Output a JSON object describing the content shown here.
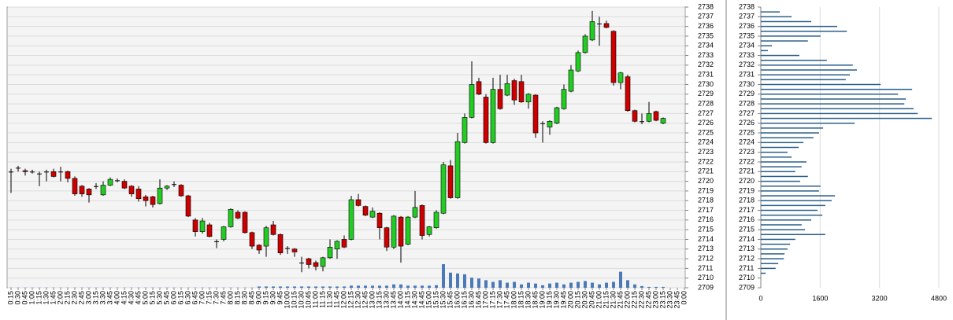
{
  "chart_data": [
    {
      "type": "candlestick",
      "categories": [
        "0:15",
        "0:30",
        "0:45",
        "1:00",
        "1:15",
        "1:30",
        "1:45",
        "2:00",
        "2:15",
        "2:30",
        "2:45",
        "3:00",
        "3:15",
        "3:30",
        "3:45",
        "4:00",
        "4:15",
        "4:30",
        "4:45",
        "5:00",
        "5:15",
        "5:30",
        "5:45",
        "6:00",
        "6:15",
        "6:30",
        "6:45",
        "7:00",
        "7:15",
        "7:30",
        "7:45",
        "8:00",
        "8:15",
        "8:30",
        "8:45",
        "9:00",
        "9:15",
        "9:30",
        "9:45",
        "10:00",
        "10:15",
        "10:30",
        "10:45",
        "11:00",
        "11:15",
        "11:30",
        "11:45",
        "12:00",
        "12:15",
        "12:30",
        "12:45",
        "13:00",
        "13:15",
        "13:30",
        "13:45",
        "14:00",
        "14:15",
        "14:30",
        "14:45",
        "15:00",
        "15:15",
        "15:30",
        "15:45",
        "16:00",
        "16:15",
        "16:30",
        "16:45",
        "17:00",
        "17:15",
        "17:30",
        "17:45",
        "18:00",
        "18:15",
        "18:30",
        "18:45",
        "19:00",
        "19:15",
        "19:30",
        "19:45",
        "20:00",
        "20:15",
        "20:30",
        "20:45",
        "21:00",
        "21:15",
        "21:30",
        "21:45",
        "22:00",
        "22:15",
        "22:30",
        "22:45",
        "23:00",
        "23:15",
        "23:30",
        "23:45",
        "0:00"
      ],
      "open": [
        2721,
        2721.4,
        2721.1,
        2721,
        2720.8,
        2721,
        2721,
        2721,
        2721,
        2720.3,
        2719.5,
        2719.2,
        2719.5,
        2718.6,
        2719.6,
        2720.1,
        2720,
        2719.5,
        2719.2,
        2718.4,
        2718.4,
        2717.7,
        2719.3,
        2719.7,
        2719.6,
        2718.5,
        2716,
        2714.8,
        2715.5,
        2713.8,
        2714,
        2715.3,
        2716.8,
        2716.8,
        2714.7,
        2713.4,
        2713.3,
        2715.5,
        2714.5,
        2713.1,
        2713,
        2711.6,
        2712,
        2711.6,
        2711.2,
        2712.1,
        2713,
        2714,
        2714,
        2718.1,
        2717.4,
        2716.3,
        2716.7,
        2715.2,
        2713.2,
        2716.3,
        2713.5,
        2716.3,
        2717.5,
        2714.5,
        2715.2,
        2716.7,
        2721.6,
        2718.3,
        2724,
        2726.6,
        2730.3,
        2728.7,
        2724,
        2729.5,
        2728.9,
        2730.4,
        2730.3,
        2728.2,
        2728.9,
        2726,
        2725.6,
        2726,
        2727.5,
        2729.3,
        2731.4,
        2733.3,
        2734.6,
        2736.3,
        2736.3,
        2735.5,
        2730.2,
        2730.8,
        2727.3,
        2726.2,
        2726.2,
        2727.2,
        2726,
        null,
        null,
        null
      ],
      "high": [
        2721.3,
        2721.6,
        2721.3,
        2721.2,
        2721,
        2721.2,
        2721.3,
        2721.5,
        2721.1,
        2720.5,
        2719.6,
        2719.3,
        2719.8,
        2720,
        2720.4,
        2720.3,
        2720.2,
        2719.6,
        2719.5,
        2718.6,
        2718.5,
        2720.2,
        2719.6,
        2720,
        2719.7,
        2718.6,
        2716.2,
        2716.2,
        2715.7,
        2714,
        2715.4,
        2717.2,
        2717,
        2716.9,
        2714.8,
        2713.5,
        2715.4,
        2715.9,
        2714.6,
        2713.3,
        2713.1,
        2712.2,
        2712.1,
        2711.8,
        2712.2,
        2714,
        2713.9,
        2714.4,
        2718.5,
        2718.7,
        2717.5,
        2717.3,
        2716.8,
        2715.3,
        2716.5,
        2716.4,
        2716.4,
        2719,
        2717.6,
        2715.4,
        2717,
        2722,
        2722.2,
        2725,
        2727,
        2732.4,
        2730.7,
        2729,
        2730.7,
        2731,
        2731,
        2730.6,
        2731,
        2729.1,
        2729,
        2726.2,
        2726.3,
        2727.7,
        2730,
        2732,
        2733.5,
        2735.2,
        2737.6,
        2737,
        2736.6,
        2735.6,
        2731.3,
        2731,
        2727.4,
        2727,
        2728.2,
        2727.3,
        2726.6,
        null,
        null,
        null
      ],
      "low": [
        2718.8,
        2721,
        2720.6,
        2720.8,
        2719.5,
        2720,
        2720.4,
        2720,
        2719.9,
        2718.5,
        2718.4,
        2717.8,
        2719.2,
        2718.5,
        2719.5,
        2719.9,
        2719.2,
        2718.4,
        2717.9,
        2717.4,
        2717.3,
        2717.6,
        2719.1,
        2719.4,
        2718.4,
        2716.3,
        2714.3,
        2714.6,
        2714.2,
        2713.1,
        2713.8,
        2715.2,
        2716.1,
        2714.6,
        2713,
        2712.5,
        2712.2,
        2714.4,
        2712.4,
        2712.5,
        2712.2,
        2710.6,
        2711,
        2710.8,
        2710.7,
        2712,
        2712,
        2713.1,
        2713.9,
        2717.4,
        2716.4,
        2716.2,
        2714,
        2712.8,
        2713,
        2711.6,
        2713.4,
        2716.2,
        2714,
        2714.3,
        2715.1,
        2716.6,
        2718.2,
        2718.2,
        2723.9,
        2726.5,
        2728.9,
        2723.9,
        2723.9,
        2727.4,
        2728.8,
        2727.9,
        2728.1,
        2727.5,
        2724.5,
        2724,
        2724.8,
        2725.9,
        2727.4,
        2729.2,
        2731.3,
        2733.2,
        2734.5,
        2734,
        2735.8,
        2729.9,
        2729.5,
        2727.2,
        2726.1,
        2725.9,
        2726.1,
        2726.2,
        2725.9,
        null,
        null,
        null
      ],
      "close": [
        2721,
        2721.4,
        2721,
        2721,
        2720.8,
        2721,
        2720.5,
        2721,
        2720.3,
        2718.7,
        2718.7,
        2718.6,
        2719.5,
        2719.6,
        2720.2,
        2720.1,
        2719.3,
        2718.7,
        2718.2,
        2718,
        2717.6,
        2719.3,
        2719.5,
        2719.7,
        2718.5,
        2716.4,
        2714.8,
        2715.9,
        2714.3,
        2713.8,
        2715.3,
        2717.1,
        2716.2,
        2714.7,
        2713.3,
        2712.9,
        2715.2,
        2714.5,
        2712.6,
        2713.1,
        2712.7,
        2711.6,
        2711.4,
        2711.2,
        2712.1,
        2713.2,
        2713.8,
        2713.2,
        2718.1,
        2717.5,
        2716.5,
        2716.9,
        2715.2,
        2713.2,
        2716.4,
        2713.3,
        2716.3,
        2717.3,
        2714.4,
        2715.3,
        2716.8,
        2721.7,
        2718.3,
        2724.1,
        2726.6,
        2730,
        2729,
        2724,
        2729.5,
        2727.5,
        2730.1,
        2728.4,
        2728.2,
        2729,
        2725,
        2726,
        2726.2,
        2727.6,
        2729.5,
        2731.5,
        2733.3,
        2735,
        2736.5,
        2736.3,
        2735.9,
        2730.2,
        2731.2,
        2727.3,
        2726.2,
        2726.2,
        2727,
        2726.3,
        2726.5,
        null,
        null,
        null
      ],
      "volume": [
        20,
        20,
        20,
        20,
        20,
        20,
        20,
        20,
        20,
        20,
        20,
        20,
        20,
        20,
        20,
        20,
        20,
        20,
        20,
        20,
        20,
        20,
        20,
        20,
        20,
        20,
        20,
        20,
        20,
        20,
        20,
        20,
        20,
        20,
        20,
        150,
        150,
        150,
        150,
        150,
        150,
        150,
        150,
        150,
        150,
        150,
        150,
        150,
        250,
        250,
        250,
        250,
        250,
        250,
        400,
        400,
        250,
        250,
        250,
        250,
        300,
        2800,
        1800,
        1700,
        1600,
        1200,
        1100,
        900,
        700,
        900,
        600,
        700,
        400,
        600,
        500,
        300,
        500,
        600,
        400,
        600,
        700,
        800,
        600,
        400,
        600,
        700,
        1900,
        900,
        400,
        200,
        100,
        100,
        100,
        null,
        null,
        null
      ],
      "up_color": "#22cc22",
      "down_color": "#cc0000",
      "flat_color": "#000000",
      "volume_color": "#4a7ab8",
      "ylim": [
        2709,
        2738
      ],
      "yticks": [
        2709,
        2710,
        2711,
        2712,
        2713,
        2714,
        2715,
        2716,
        2717,
        2718,
        2719,
        2720,
        2721,
        2722,
        2723,
        2724,
        2725,
        2726,
        2727,
        2728,
        2729,
        2730,
        2731,
        2732,
        2733,
        2734,
        2735,
        2736,
        2737,
        2738
      ],
      "grid": true
    },
    {
      "type": "barh",
      "y": [
        2737.5,
        2737,
        2736.5,
        2736,
        2735.5,
        2735,
        2734.5,
        2734,
        2733.5,
        2733,
        2732.5,
        2732,
        2731.5,
        2731,
        2730.5,
        2730,
        2729.5,
        2729,
        2728.5,
        2728,
        2727.5,
        2727,
        2726.5,
        2726,
        2725.5,
        2725,
        2724.5,
        2724,
        2723.5,
        2723,
        2722.5,
        2722,
        2721.5,
        2721,
        2720.5,
        2720,
        2719.5,
        2719,
        2718.5,
        2718,
        2717.5,
        2717,
        2716.5,
        2716,
        2715.5,
        2715,
        2714.5,
        2714,
        2713.5,
        2713,
        2712.5,
        2712,
        2711.5,
        2711,
        2710.5
      ],
      "values": [
        510,
        830,
        1360,
        2060,
        2320,
        1610,
        1270,
        300,
        190,
        1040,
        1780,
        2480,
        2590,
        2400,
        2290,
        3230,
        4080,
        3700,
        3910,
        3870,
        4120,
        4230,
        4610,
        2530,
        1680,
        1570,
        1420,
        1150,
        1020,
        720,
        830,
        1230,
        1100,
        930,
        1270,
        1060,
        1610,
        1570,
        2000,
        1910,
        1740,
        1530,
        1660,
        1360,
        1100,
        1190,
        1740,
        930,
        790,
        720,
        640,
        620,
        470,
        400,
        130
      ],
      "color": "#2a5f8a",
      "xlim": [
        0,
        4800
      ],
      "xticks": [
        0,
        1600,
        3200,
        4800
      ],
      "ylim": [
        2709,
        2738
      ],
      "yticks": [
        2709,
        2710,
        2711,
        2712,
        2713,
        2714,
        2715,
        2716,
        2717,
        2718,
        2719,
        2720,
        2721,
        2722,
        2723,
        2724,
        2725,
        2726,
        2727,
        2728,
        2729,
        2730,
        2731,
        2732,
        2733,
        2734,
        2735,
        2736,
        2737,
        2738
      ],
      "grid": true
    }
  ]
}
